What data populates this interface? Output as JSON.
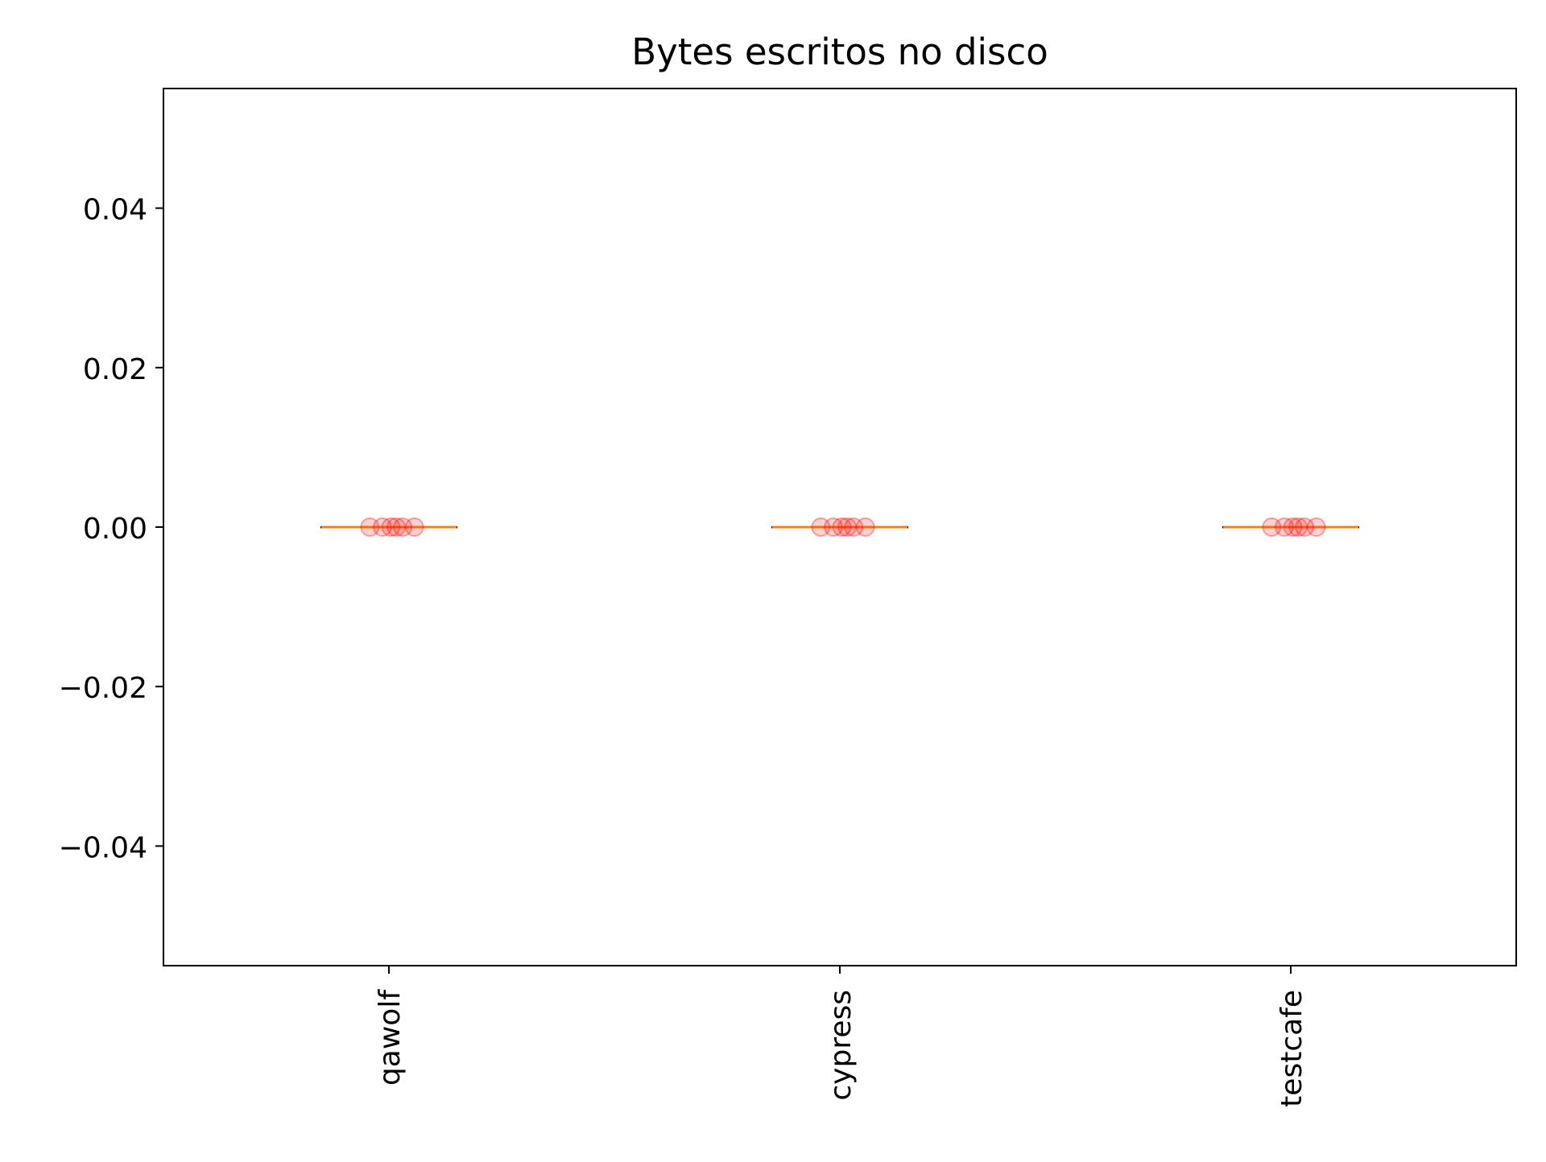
{
  "chart_data": {
    "type": "box",
    "title": "Bytes escritos no disco",
    "xlabel": "",
    "ylabel": "",
    "ylim": [
      -0.055,
      0.055
    ],
    "yticks": [
      -0.04,
      -0.02,
      0.0,
      0.02,
      0.04
    ],
    "ytick_labels": [
      "−0.04",
      "−0.02",
      "0.00",
      "0.02",
      "0.04"
    ],
    "categories": [
      "qawolf",
      "cypress",
      "testcafe"
    ],
    "median_color": "#ff7f0e",
    "point_color": "#ff0000",
    "grid": false,
    "series": [
      {
        "category": "qawolf",
        "median": 0.0,
        "q1": 0.0,
        "q3": 0.0,
        "whisker_low": 0.0,
        "whisker_high": 0.0,
        "points": [
          0,
          0,
          0,
          0,
          0,
          0
        ]
      },
      {
        "category": "cypress",
        "median": 0.0,
        "q1": 0.0,
        "q3": 0.0,
        "whisker_low": 0.0,
        "whisker_high": 0.0,
        "points": [
          0,
          0,
          0,
          0,
          0,
          0
        ]
      },
      {
        "category": "testcafe",
        "median": 0.0,
        "q1": 0.0,
        "q3": 0.0,
        "whisker_low": 0.0,
        "whisker_high": 0.0,
        "points": [
          0,
          0,
          0,
          0,
          0,
          0
        ]
      }
    ]
  }
}
